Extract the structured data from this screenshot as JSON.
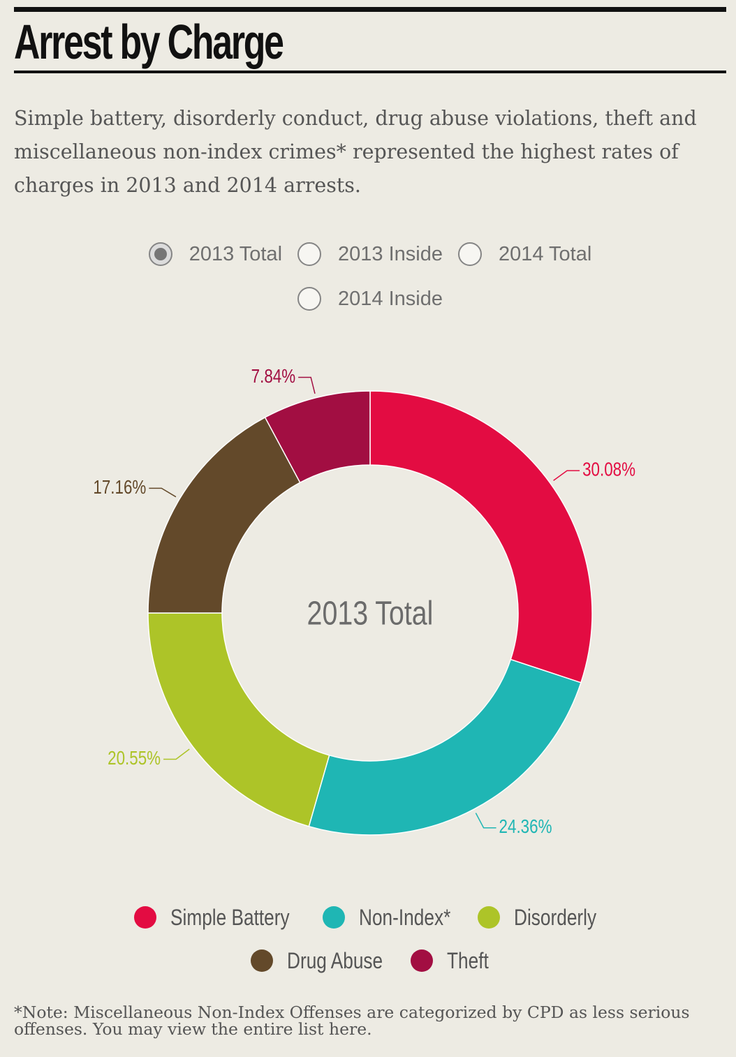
{
  "header": {
    "title": "Arrest by Charge",
    "intro": "Simple battery, disorderly conduct, drug abuse violations, theft and miscellaneous non-index crimes* represented the highest rates of charges in 2013 and 2014 arrests."
  },
  "controls": {
    "options": [
      {
        "label": "2013 Total",
        "checked": true
      },
      {
        "label": "2013 Inside",
        "checked": false
      },
      {
        "label": "2014 Total",
        "checked": false
      },
      {
        "label": "2014 Inside",
        "checked": false
      }
    ]
  },
  "chart_data": {
    "type": "pie",
    "center_label": "2013 Total",
    "slices": [
      {
        "name": "Simple Battery",
        "value": 30.08,
        "label": "30.08%",
        "color": "#e30c42"
      },
      {
        "name": "Non-Index*",
        "value": 24.36,
        "label": "24.36%",
        "color": "#1fb6b4"
      },
      {
        "name": "Disorderly",
        "value": 20.55,
        "label": "20.55%",
        "color": "#adc428"
      },
      {
        "name": "Drug Abuse",
        "value": 17.16,
        "label": "17.16%",
        "color": "#63492a"
      },
      {
        "name": "Theft",
        "value": 7.84,
        "label": "7.84%",
        "color": "#a20e42"
      }
    ],
    "legend_position": "bottom"
  },
  "footer": {
    "note": "*Note: Miscellaneous Non-Index Offenses are categorized by CPD as less serious offenses. You may view the entire list here."
  }
}
